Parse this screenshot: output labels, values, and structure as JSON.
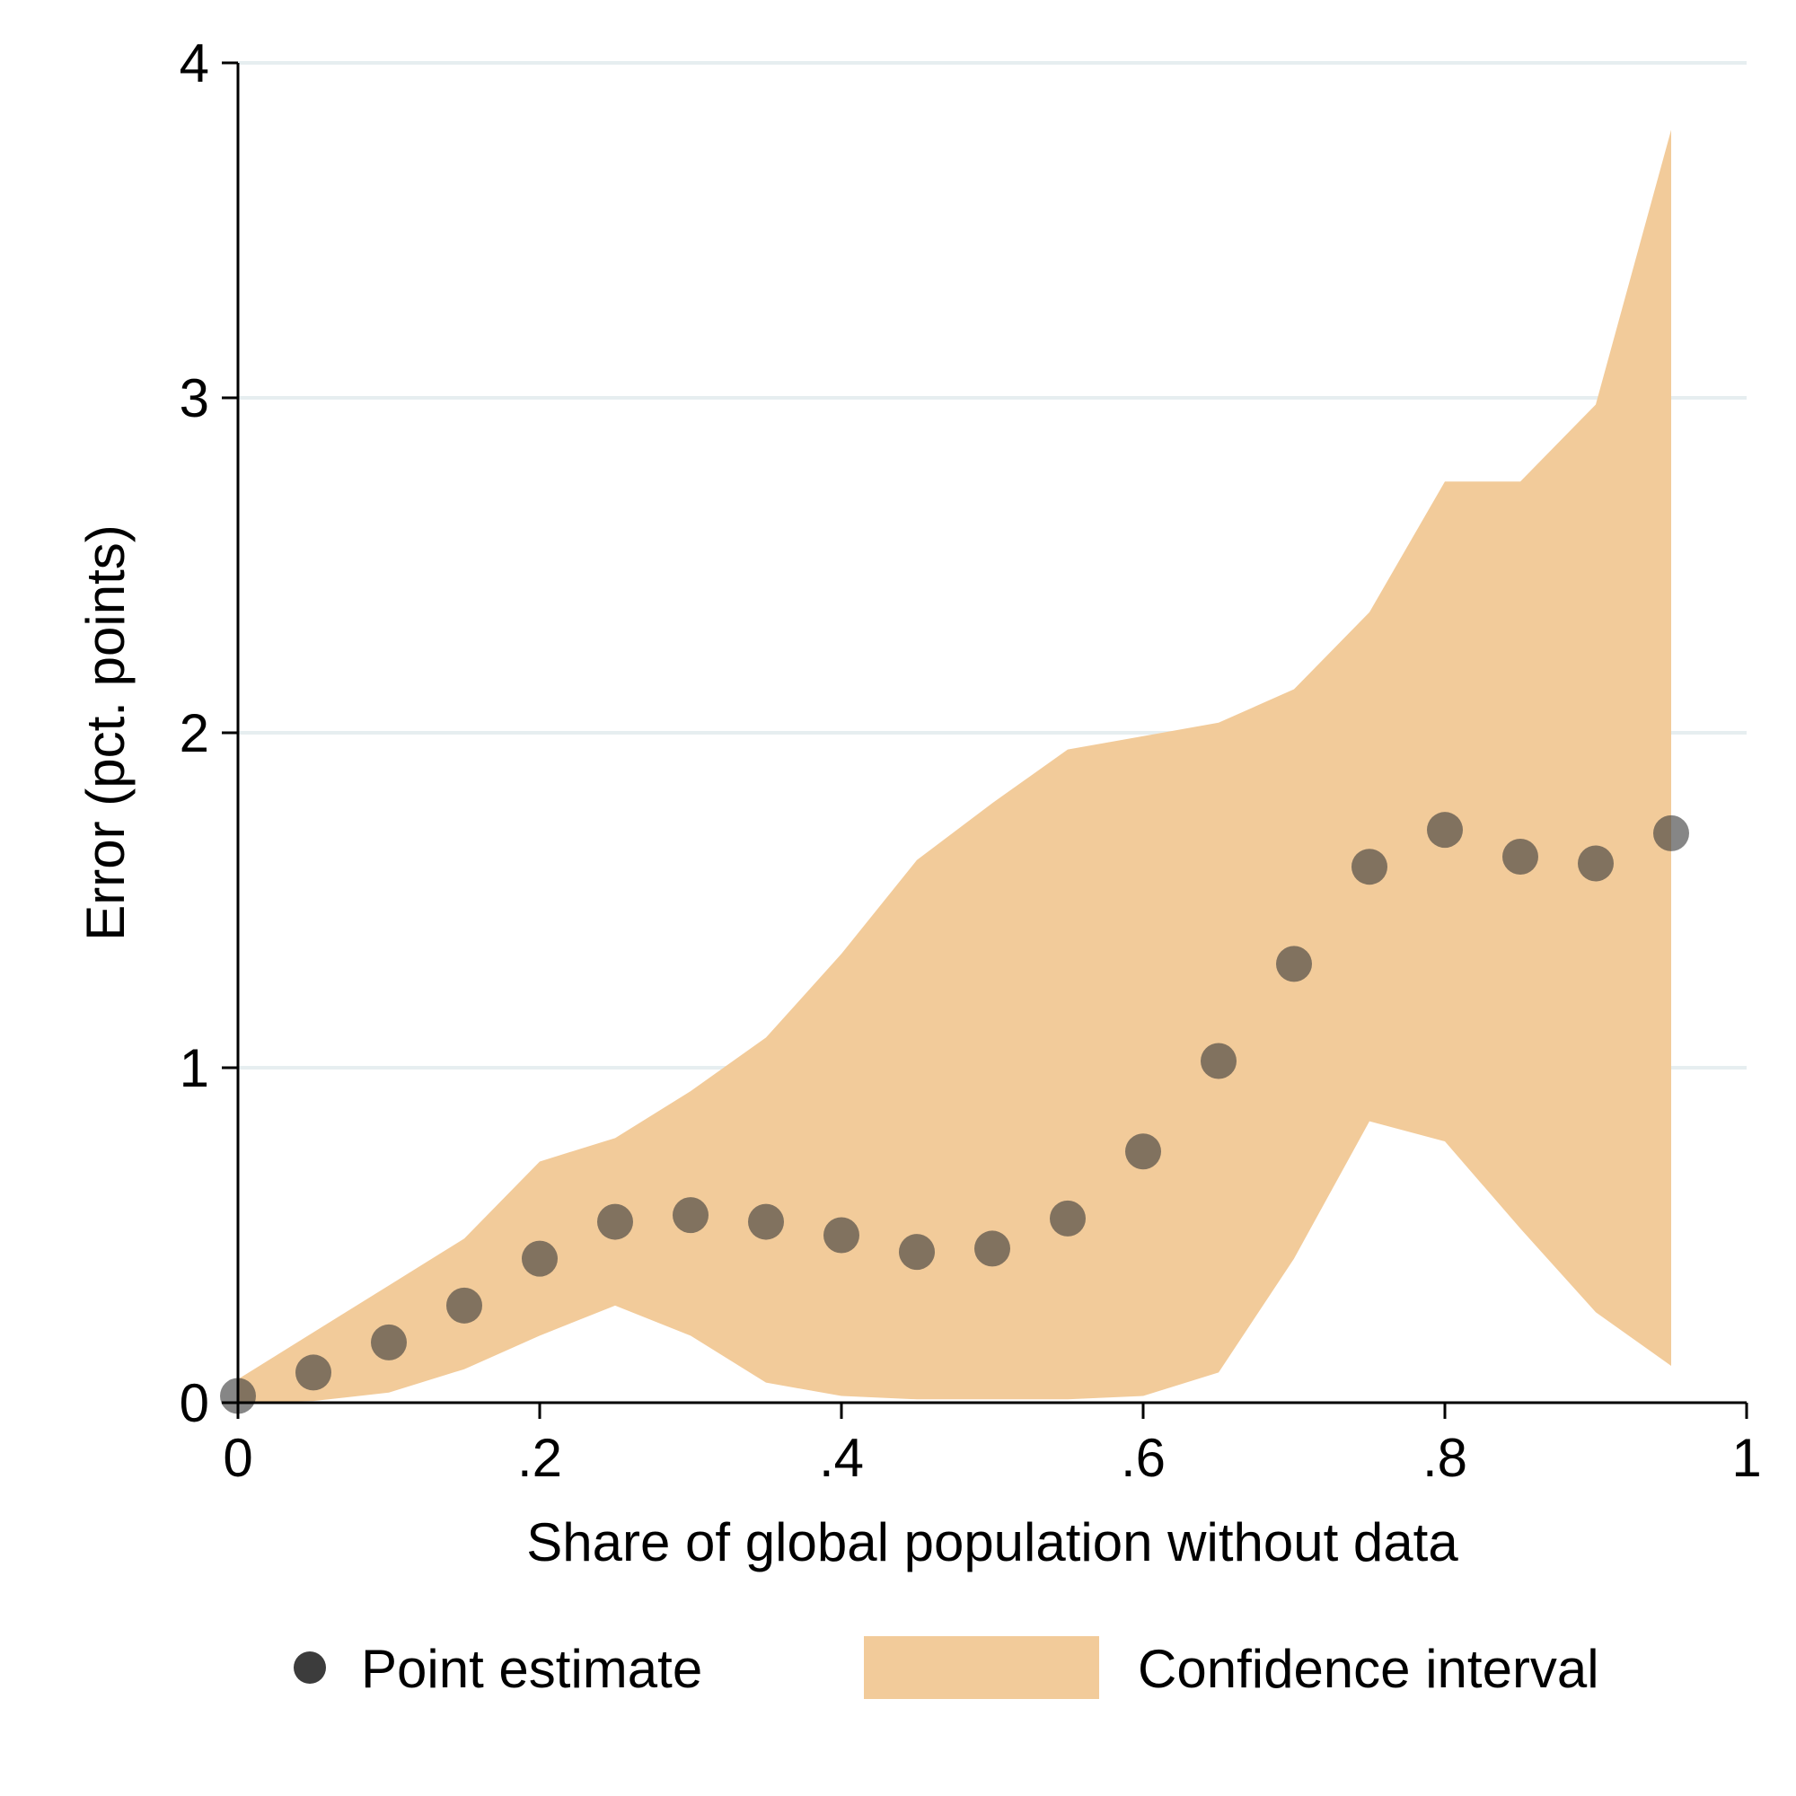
{
  "chart_data": {
    "type": "scatter",
    "title": "",
    "xlabel": "Share of global population without data",
    "ylabel": "Error (pct. points)",
    "xlim": [
      0,
      1
    ],
    "ylim": [
      0,
      4
    ],
    "x_ticks": [
      {
        "value": 0,
        "label": "0"
      },
      {
        "value": 0.2,
        "label": ".2"
      },
      {
        "value": 0.4,
        "label": ".4"
      },
      {
        "value": 0.6,
        "label": ".6"
      },
      {
        "value": 0.8,
        "label": ".8"
      },
      {
        "value": 1,
        "label": "1"
      }
    ],
    "y_ticks": [
      {
        "value": 0,
        "label": "0"
      },
      {
        "value": 1,
        "label": "1"
      },
      {
        "value": 2,
        "label": "2"
      },
      {
        "value": 3,
        "label": "3"
      },
      {
        "value": 4,
        "label": "4"
      }
    ],
    "grid": "horizontal",
    "legend_position": "bottom",
    "colors": {
      "point": "#3c3c3c",
      "band": "#f2cb9a",
      "grid": "#e6eef0",
      "axis": "#000000"
    },
    "series": [
      {
        "name": "Point estimate",
        "kind": "points",
        "x": [
          0,
          0.05,
          0.1,
          0.15,
          0.2,
          0.25,
          0.3,
          0.35,
          0.4,
          0.45,
          0.5,
          0.55,
          0.6,
          0.65,
          0.7,
          0.75,
          0.8,
          0.85,
          0.9,
          0.95
        ],
        "y": [
          0.02,
          0.09,
          0.18,
          0.29,
          0.43,
          0.54,
          0.56,
          0.54,
          0.5,
          0.45,
          0.46,
          0.55,
          0.75,
          1.02,
          1.31,
          1.6,
          1.71,
          1.63,
          1.61,
          1.7
        ]
      },
      {
        "name": "Confidence interval",
        "kind": "band",
        "x": [
          0,
          0.05,
          0.1,
          0.15,
          0.2,
          0.25,
          0.3,
          0.35,
          0.4,
          0.45,
          0.5,
          0.55,
          0.6,
          0.65,
          0.7,
          0.75,
          0.8,
          0.85,
          0.9,
          0.95
        ],
        "lower": [
          0,
          0.005,
          0.03,
          0.1,
          0.2,
          0.29,
          0.2,
          0.06,
          0.02,
          0.01,
          0.01,
          0.01,
          0.02,
          0.09,
          0.43,
          0.84,
          0.78,
          0.52,
          0.27,
          0.11
        ],
        "upper": [
          0.07,
          0.21,
          0.35,
          0.49,
          0.72,
          0.79,
          0.93,
          1.09,
          1.34,
          1.62,
          1.79,
          1.95,
          1.99,
          2.03,
          2.13,
          2.36,
          2.75,
          2.75,
          2.98,
          3.8
        ]
      }
    ]
  }
}
